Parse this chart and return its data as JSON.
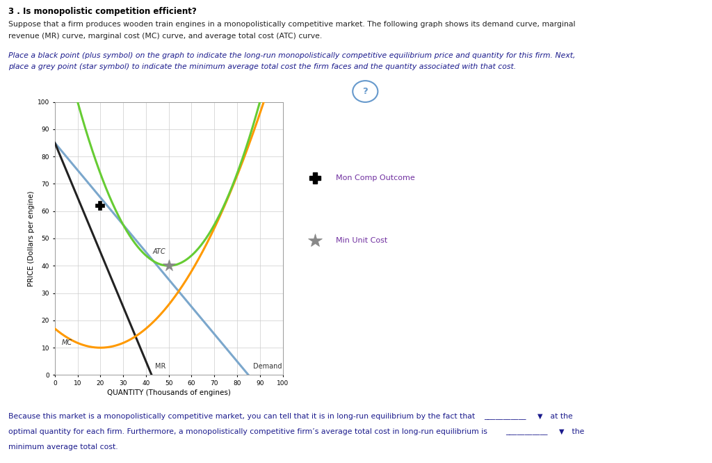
{
  "xlabel": "QUANTITY (Thousands of engines)",
  "ylabel": "PRICE (Dollars per engine)",
  "xlim": [
    0,
    100
  ],
  "ylim": [
    0,
    100
  ],
  "xticks": [
    0,
    10,
    20,
    30,
    40,
    50,
    60,
    70,
    80,
    90,
    100
  ],
  "yticks": [
    0,
    10,
    20,
    30,
    40,
    50,
    60,
    70,
    80,
    90,
    100
  ],
  "demand_color": "#7BA7CC",
  "mr_color": "#222222",
  "mc_color": "#FF9900",
  "atc_color": "#66CC33",
  "demand_label": "Demand",
  "mr_label": "MR",
  "mc_label": "MC",
  "atc_label": "ATC",
  "mc_min_x": 20,
  "mc_min_y": 10,
  "mc_y0": 17,
  "atc_min_x": 50,
  "atc_min_y": 40,
  "atc_x0": 10,
  "atc_y0": 100,
  "demand_x0": 0,
  "demand_y0": 85,
  "demand_x1": 85,
  "mon_comp_x": 20,
  "mon_comp_y": 62,
  "min_atc_x": 50,
  "min_atc_y": 40,
  "mon_comp_color": "#000000",
  "min_atc_color": "#888888",
  "legend_mon_comp": "Mon Comp Outcome",
  "legend_min_cost": "Min Unit Cost",
  "bg_color": "#FFFFFF",
  "panel_bg": "#FFFFFF",
  "grid_color": "#CCCCCC",
  "header1": "3 . Is monopolistic competition efficient?",
  "header2a": "Suppose that a firm produces wooden train engines in a monopolistically competitive market. The following graph shows its demand curve, marginal",
  "header2b": "revenue (MR) curve, marginal cost (MC) curve, and average total cost (ATC) curve.",
  "header3a": "Place a black point (plus symbol) on the graph to indicate the long-run monopolistically competitive equilibrium price and quantity for this firm. Next,",
  "header3b": "place a grey point (star symbol) to indicate the minimum average total cost the firm faces and the quantity associated with that cost.",
  "footer1": "Because this market is a monopolistically competitive market, you can tell that it is in long-run equilibrium by the fact that",
  "footer2": "optimal quantity for each firm. Furthermore, a monopolistically competitive firm’s average total cost in long-run equilibrium is",
  "footer3": "minimum average total cost.",
  "footer_underline1": "at the",
  "footer_underline2": "the"
}
